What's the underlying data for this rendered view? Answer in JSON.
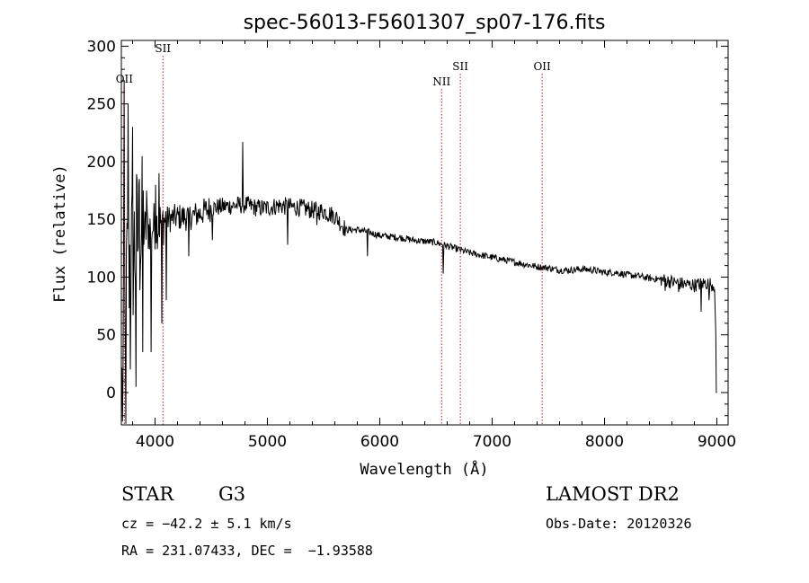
{
  "chart_data": {
    "type": "line",
    "title": "spec-56013-F5601307_sp07-176.fits",
    "xlabel": "Wavelength (Å)",
    "ylabel": "Flux (relative)",
    "xlim": [
      3700,
      9100
    ],
    "ylim": [
      -28,
      305
    ],
    "xticks": [
      4000,
      5000,
      6000,
      7000,
      8000,
      9000
    ],
    "yticks": [
      0,
      50,
      100,
      150,
      200,
      250,
      300
    ],
    "continuum": [
      [
        3720,
        60
      ],
      [
        3760,
        115
      ],
      [
        3800,
        120
      ],
      [
        3850,
        135
      ],
      [
        3900,
        140
      ],
      [
        3950,
        142
      ],
      [
        4000,
        145
      ],
      [
        4100,
        150
      ],
      [
        4200,
        152
      ],
      [
        4300,
        152
      ],
      [
        4400,
        155
      ],
      [
        4500,
        160
      ],
      [
        4600,
        161
      ],
      [
        4700,
        162
      ],
      [
        4800,
        163
      ],
      [
        4900,
        160
      ],
      [
        5000,
        160
      ],
      [
        5100,
        162
      ],
      [
        5200,
        161
      ],
      [
        5300,
        160
      ],
      [
        5400,
        158
      ],
      [
        5500,
        157
      ],
      [
        5600,
        153
      ],
      [
        5700,
        141
      ],
      [
        5800,
        141
      ],
      [
        5900,
        139
      ],
      [
        6000,
        136
      ],
      [
        6100,
        135
      ],
      [
        6200,
        134
      ],
      [
        6300,
        132
      ],
      [
        6400,
        131
      ],
      [
        6500,
        130
      ],
      [
        6600,
        127
      ],
      [
        6700,
        124
      ],
      [
        6800,
        121
      ],
      [
        6900,
        119
      ],
      [
        7000,
        117
      ],
      [
        7100,
        115
      ],
      [
        7200,
        113
      ],
      [
        7300,
        111
      ],
      [
        7400,
        109
      ],
      [
        7500,
        108
      ],
      [
        7600,
        106
      ],
      [
        7700,
        106
      ],
      [
        7800,
        107
      ],
      [
        7900,
        106
      ],
      [
        8000,
        104
      ],
      [
        8100,
        104
      ],
      [
        8200,
        102
      ],
      [
        8300,
        101
      ],
      [
        8400,
        99
      ],
      [
        8500,
        98
      ],
      [
        8600,
        96
      ],
      [
        8700,
        94
      ],
      [
        8800,
        93
      ],
      [
        8900,
        95
      ],
      [
        8980,
        93
      ],
      [
        9000,
        0
      ]
    ],
    "features": [
      [
        3710,
        -25
      ],
      [
        3727,
        270
      ],
      [
        3740,
        -30
      ],
      [
        3760,
        250
      ],
      [
        3780,
        20
      ],
      [
        3800,
        230
      ],
      [
        3830,
        5
      ],
      [
        3860,
        185
      ],
      [
        3890,
        35
      ],
      [
        3925,
        175
      ],
      [
        3965,
        35
      ],
      [
        4005,
        180
      ],
      [
        4035,
        190
      ],
      [
        4060,
        60
      ],
      [
        4101,
        80
      ],
      [
        4300,
        118
      ],
      [
        4510,
        132
      ],
      [
        4780,
        217
      ],
      [
        5180,
        128
      ],
      [
        5440,
        145
      ],
      [
        5890,
        118
      ],
      [
        6563,
        103
      ],
      [
        8540,
        88
      ],
      [
        8600,
        100
      ],
      [
        8662,
        87
      ],
      [
        8860,
        70
      ],
      [
        8930,
        80
      ]
    ],
    "emission_lines": [
      {
        "label": "OII",
        "wavelength": 3727
      },
      {
        "label": "SII",
        "wavelength": 4070
      },
      {
        "label": "NII",
        "wavelength": 6550
      },
      {
        "label": "SII",
        "wavelength": 6717
      },
      {
        "label": "OII",
        "wavelength": 7445
      }
    ]
  },
  "info": {
    "object_class": "STAR",
    "subclass": "G3",
    "redshift": "cz = −42.2 ± 5.1 km/s",
    "coords": "RA = 231.07433, DEC =  −1.93588",
    "survey": "LAMOST DR2",
    "obs_date": "Obs-Date: 20120326"
  },
  "colors": {
    "line_marker": "#b22222",
    "spectrum": "#000000"
  }
}
